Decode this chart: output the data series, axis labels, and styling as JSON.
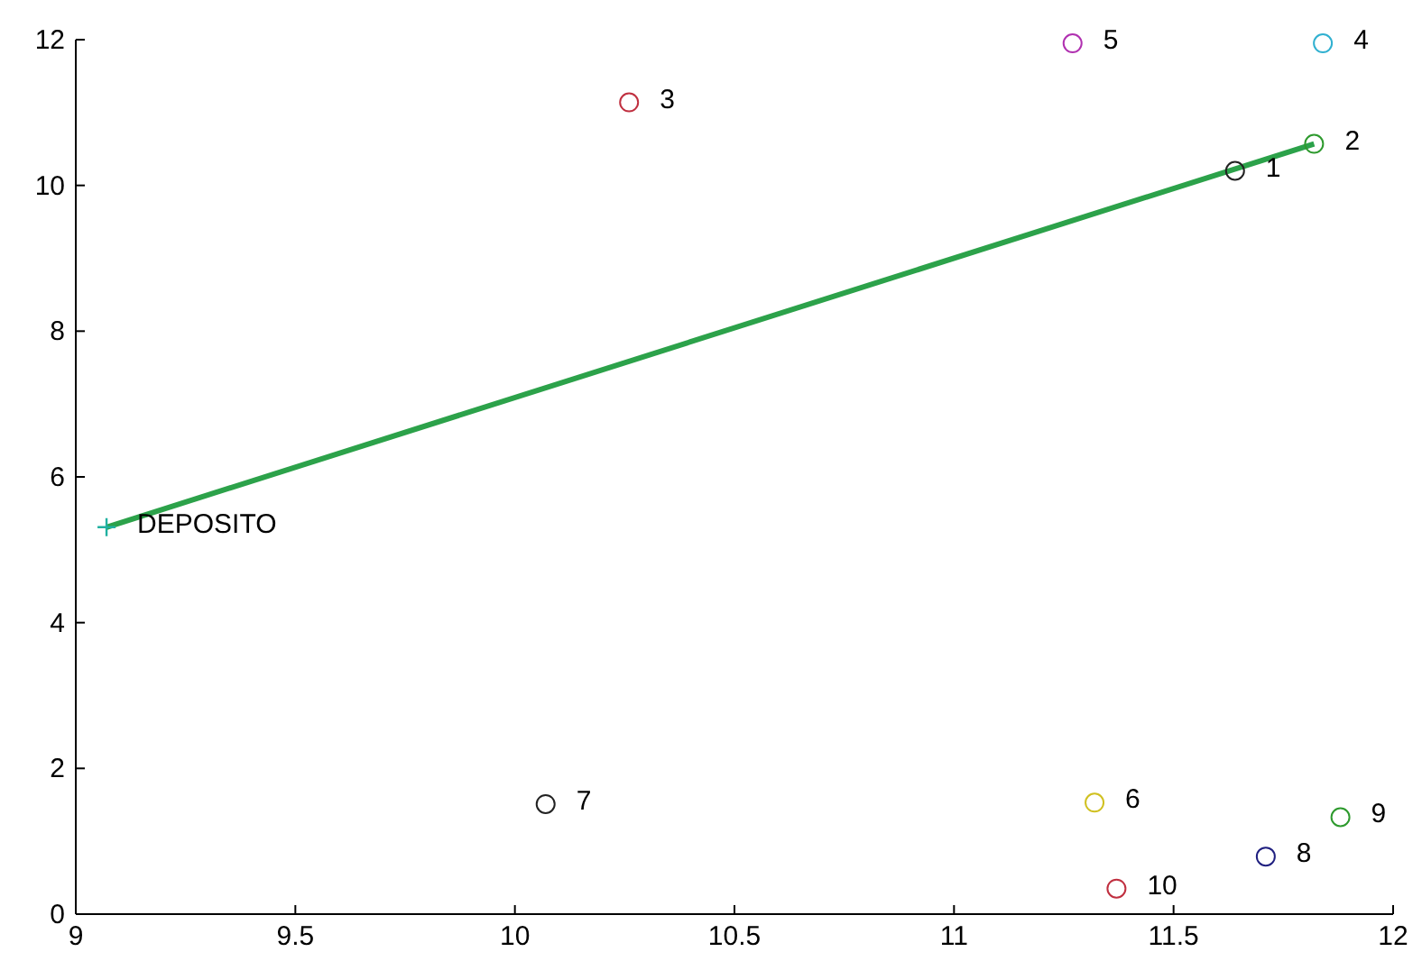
{
  "chart_data": {
    "type": "scatter",
    "xlim": [
      9,
      12
    ],
    "ylim": [
      0,
      12
    ],
    "xticks": [
      9,
      9.5,
      10,
      10.5,
      11,
      11.5,
      12
    ],
    "yticks": [
      0,
      2,
      4,
      6,
      8,
      10,
      12
    ],
    "grid": false,
    "series": [
      {
        "type": "line",
        "color": "#2ca24a",
        "x": [
          9.07,
          11.82
        ],
        "values": [
          5.31,
          10.57
        ],
        "marker": "none"
      },
      {
        "marker": "circle",
        "x": [
          11.64,
          11.82,
          10.26,
          11.84,
          11.27,
          11.32,
          10.07,
          11.71,
          11.88,
          11.37
        ],
        "values": [
          10.2,
          10.57,
          11.14,
          11.95,
          11.95,
          1.53,
          1.51,
          0.79,
          1.33,
          0.35
        ],
        "colors": [
          "#222222",
          "#2e9a2e",
          "#c03040",
          "#30b0d0",
          "#b030b0",
          "#d0c020",
          "#222222",
          "#202080",
          "#2e9a2e",
          "#c03040"
        ]
      },
      {
        "marker": "cross",
        "color": "#20b0a0",
        "x": [
          9.07
        ],
        "values": [
          5.31
        ]
      }
    ],
    "annotations": [
      {
        "text": "1",
        "x": 11.64,
        "y": 10.2
      },
      {
        "text": "2",
        "x": 11.82,
        "y": 10.57
      },
      {
        "text": "3",
        "x": 10.26,
        "y": 11.14
      },
      {
        "text": "4",
        "x": 11.84,
        "y": 11.95
      },
      {
        "text": "5",
        "x": 11.27,
        "y": 11.95
      },
      {
        "text": "6",
        "x": 11.32,
        "y": 1.53
      },
      {
        "text": "7",
        "x": 10.07,
        "y": 1.51
      },
      {
        "text": "8",
        "x": 11.71,
        "y": 0.79
      },
      {
        "text": "9",
        "x": 11.88,
        "y": 1.33
      },
      {
        "text": "10",
        "x": 11.37,
        "y": 0.35
      },
      {
        "text": "DEPOSITO",
        "x": 9.07,
        "y": 5.31
      }
    ]
  }
}
